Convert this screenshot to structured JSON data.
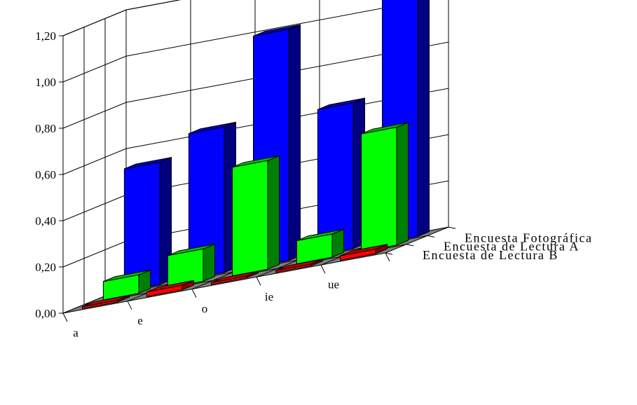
{
  "chart_data": {
    "type": "bar",
    "variant": "3d-column",
    "title": "",
    "xlabel": "",
    "ylabel": "",
    "ylim": [
      0,
      1.2
    ],
    "yticks": [
      "0,00",
      "0,20",
      "0,40",
      "0,60",
      "0,80",
      "1,00",
      "1,20"
    ],
    "grid": true,
    "legend": "none",
    "categories": [
      "a",
      "e",
      "o",
      "ie",
      "ue"
    ],
    "series": [
      {
        "name": "Encuesta Fotográfica",
        "color": "#0000ff",
        "values": [
          0.53,
          0.63,
          1.0,
          0.63,
          1.15
        ]
      },
      {
        "name": "Encuesta de Lectura A",
        "color": "#00ff00",
        "values": [
          0.08,
          0.14,
          0.47,
          0.1,
          0.51
        ]
      },
      {
        "name": "Encuesta de Lectura B",
        "color": "#ff0000",
        "values": [
          0.0,
          0.02,
          0.0,
          0.0,
          0.02
        ]
      }
    ]
  }
}
